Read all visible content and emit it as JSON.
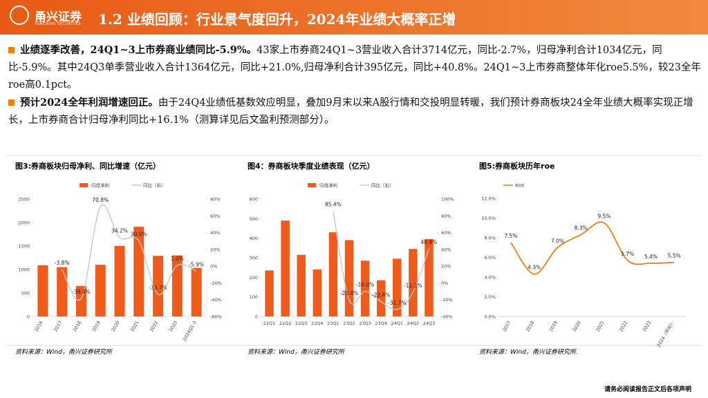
{
  "header": {
    "logo": "甬兴证券",
    "logo_en": "YONGXING SECURITIES",
    "title": "1.2 业绩回顾：行业景气度回升，2024年业绩大概率正增"
  },
  "bullets": [
    {
      "bold": "业绩逐季改善，24Q1~3上市券商业绩同比-5.9%。",
      "text": "43家上市券商24Q1~3营业收入合计3714亿元，同比-2.7%，归母净利合计1034亿元，同比-5.9%。其中24Q3单季营业收入合计1364亿元，同比+21.0%,归母净利合计395亿元，同比+40.8%。24Q1~3上市券商整体年化roe5.5%，较23全年roe高0.1pct。"
    },
    {
      "bold": "预计2024全年利润增速回正。",
      "text": "由于24Q4业绩低基数效应明显，叠加9月末以来A股行情和交投明显转暖，我们预计券商板块24全年业绩大概率实现正增长，上市券商合计归母净利同比+16.1%（测算详见后文盈利预测部分）。"
    }
  ],
  "chart_data": [
    {
      "type": "combo",
      "title": "图3:券商板块归母净利、同比增速（亿元）",
      "source": "资料来源：Wind，甬兴证券研究所",
      "categories": [
        "2016",
        "2017",
        "2018",
        "2019",
        "2020",
        "2021",
        "2022",
        "2023",
        "2024Q1-3"
      ],
      "series": [
        {
          "name": "归母净利",
          "mark": "bar",
          "color": "#f05a1a",
          "values": [
            1090,
            1050,
            650,
            1100,
            1500,
            1910,
            1290,
            1300,
            1034
          ]
        },
        {
          "name": "同比（右）",
          "mark": "line",
          "axis": "y2",
          "color": "#c8c8c8",
          "values": [
            null,
            -3.8,
            -38.4,
            70.8,
            34.2,
            30.0,
            -33.7,
            1.0,
            -5.9
          ],
          "value_labels": [
            null,
            "-3.8%",
            "-38.4%",
            "70.8%",
            "34.2%",
            "30.0%",
            "-33.7%",
            "1.0%",
            "-5.9%"
          ]
        }
      ],
      "ylim": [
        0,
        2500
      ],
      "yticks": [
        0,
        500,
        1000,
        1500,
        2000,
        2500
      ],
      "y2lim": [
        -60,
        80
      ],
      "y2ticks": [
        {
          "value": -60,
          "label": "-60%"
        },
        {
          "value": -40,
          "label": "-40%"
        },
        {
          "value": -20,
          "label": "-20%"
        },
        {
          "value": 0,
          "label": "0%"
        },
        {
          "value": 20,
          "label": "20%"
        },
        {
          "value": 40,
          "label": "40%"
        },
        {
          "value": 60,
          "label": "60%"
        },
        {
          "value": 80,
          "label": "80%"
        }
      ]
    },
    {
      "type": "combo",
      "title": "图4：券商板块季度业绩表现（亿元）",
      "source": "资料来源：Wind，甬兴证券研究所",
      "categories": [
        "22Q1",
        "22Q2",
        "22Q3",
        "22Q4",
        "23Q1",
        "23Q2",
        "23Q3",
        "23Q4",
        "24Q1",
        "24Q2",
        "24Q3"
      ],
      "series": [
        {
          "name": "归母净利",
          "mark": "bar",
          "color": "#f05a1a",
          "values": [
            235,
            490,
            315,
            240,
            430,
            390,
            285,
            185,
            295,
            345,
            395
          ]
        },
        {
          "name": "同比（右）",
          "mark": "line",
          "axis": "y2",
          "color": "#c8c8c8",
          "values": [
            null,
            null,
            null,
            null,
            85.4,
            -20.4,
            -10.0,
            -22.4,
            -31.7,
            -11.2,
            40.8
          ],
          "value_labels": [
            null,
            null,
            null,
            null,
            "85.4%",
            "-20.4%",
            "-10.0%",
            "-22.4%",
            "-31.7%",
            "-11.2%",
            "40.8%"
          ]
        }
      ],
      "ylim": [
        0,
        600
      ],
      "yticks": [
        0,
        100,
        200,
        300,
        400,
        500,
        600
      ],
      "y2lim": [
        -40,
        100
      ],
      "y2ticks": [
        {
          "value": -40,
          "label": "-40%"
        },
        {
          "value": -20,
          "label": "-20%"
        },
        {
          "value": 0,
          "label": "0%"
        },
        {
          "value": 20,
          "label": "20%"
        },
        {
          "value": 40,
          "label": "40%"
        },
        {
          "value": 60,
          "label": "60%"
        },
        {
          "value": 80,
          "label": "80%"
        },
        {
          "value": 100,
          "label": "100%"
        }
      ]
    },
    {
      "type": "line",
      "title": "图5:券商板块历年roe",
      "source": "资料来源：Wind，甬兴证券研究所.",
      "categories": [
        "2017",
        "2018",
        "2019",
        "2020",
        "2021",
        "2022",
        "2023",
        "2024（年化）"
      ],
      "series": [
        {
          "name": "ROE",
          "mark": "line",
          "color": "#f07f0b",
          "values": [
            7.5,
            4.3,
            7.0,
            8.3,
            9.5,
            5.7,
            5.4,
            5.5
          ],
          "value_labels": [
            "7.5%",
            "4.3%",
            "7.0%",
            "8.3%",
            "9.5%",
            "5.7%",
            "5.4%",
            "5.5%"
          ]
        }
      ],
      "ylim": [
        0,
        12
      ],
      "yticks": [
        {
          "value": 0,
          "label": "0.0%"
        },
        {
          "value": 2,
          "label": "2.0%"
        },
        {
          "value": 4,
          "label": "4.0%"
        },
        {
          "value": 6,
          "label": "6.0%"
        },
        {
          "value": 8,
          "label": "8.0%"
        },
        {
          "value": 10,
          "label": "10.0%"
        },
        {
          "value": 12,
          "label": "12.0%"
        }
      ]
    }
  ],
  "footer": "请务必阅读报告正文后各项声明"
}
